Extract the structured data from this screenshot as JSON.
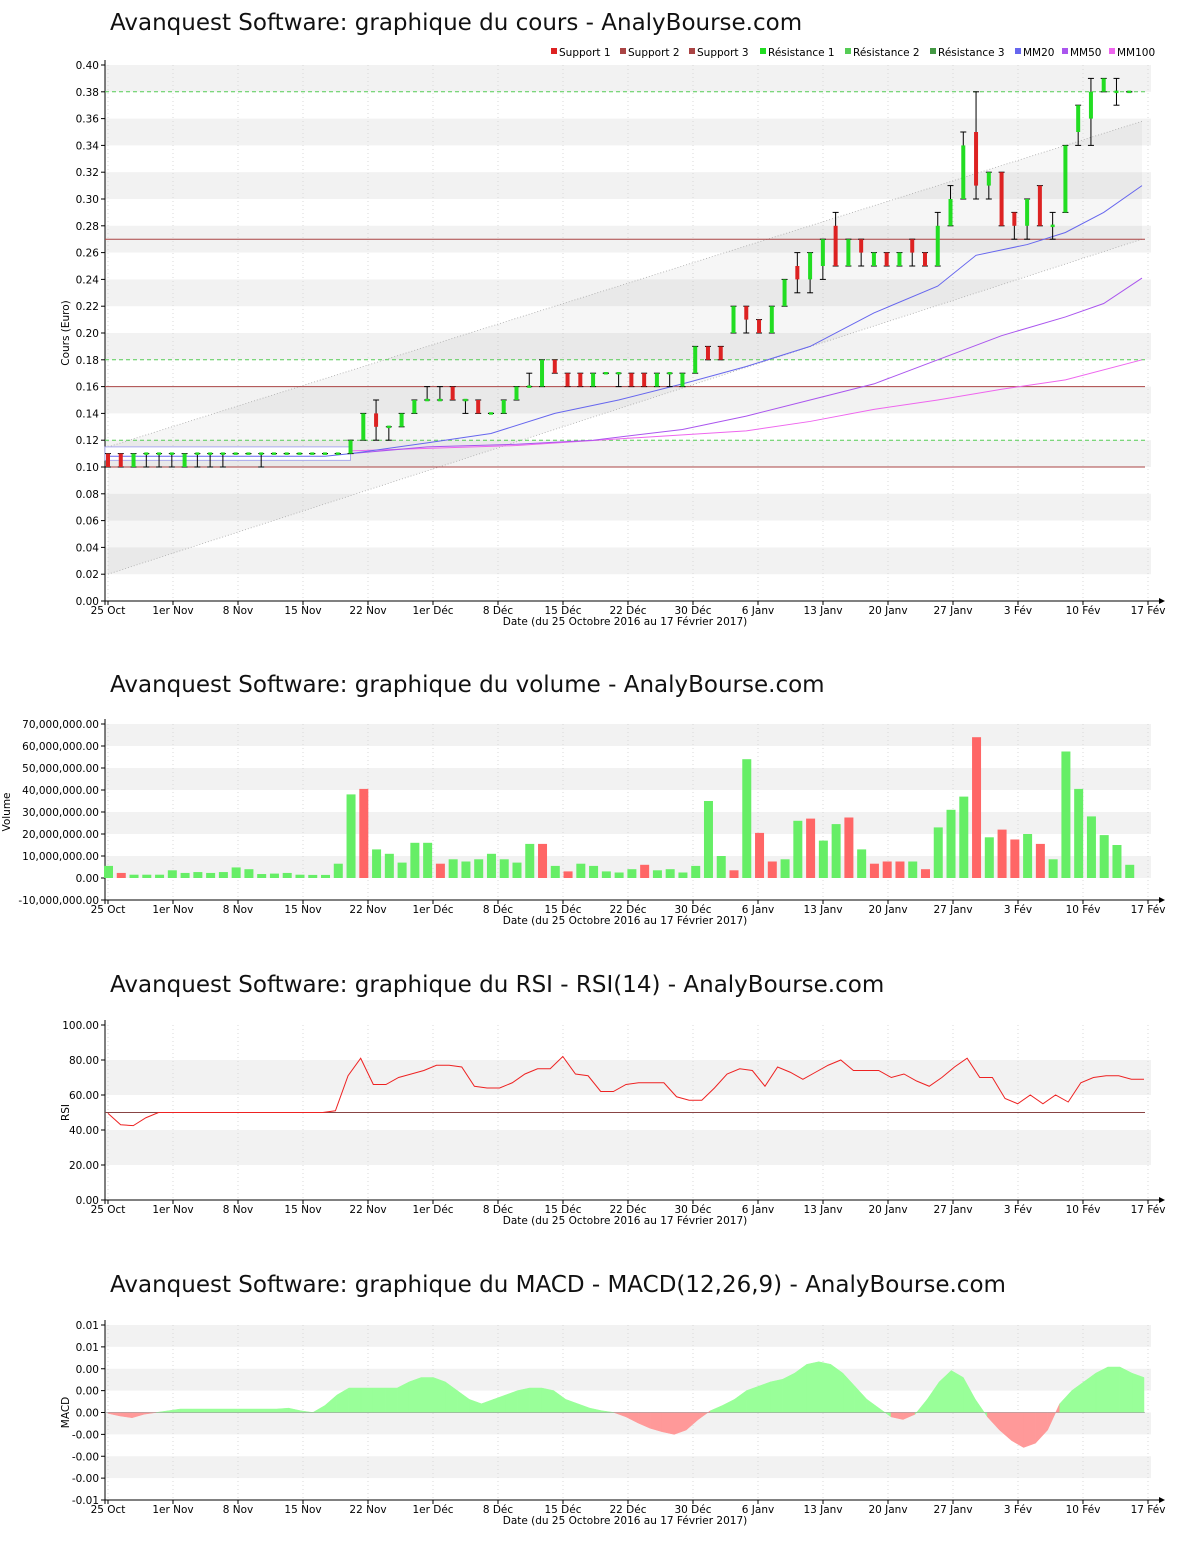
{
  "x_ticks": [
    "25 Oct",
    "1er Nov",
    "8 Nov",
    "15 Nov",
    "22 Nov",
    "1er Déc",
    "8 Déc",
    "15 Déc",
    "22 Déc",
    "30 Déc",
    "6 Janv",
    "13 Janv",
    "20 Janv",
    "27 Janv",
    "3 Fév",
    "10 Fév",
    "17 Fév"
  ],
  "x_axis_label": "Date (du 25 Octobre 2016 au 17 Février 2017)",
  "charts": {
    "price": {
      "title": "Avanquest Software: graphique du cours - AnalyBourse.com",
      "ylabel": "Cours (Euro)",
      "legend": [
        "Support 1",
        "Support 2",
        "Support 3",
        "Résistance 1",
        "Résistance 2",
        "Résistance 3",
        "MM20",
        "MM50",
        "MM100"
      ]
    },
    "volume": {
      "title": "Avanquest Software: graphique du volume - AnalyBourse.com",
      "ylabel": "Volume"
    },
    "rsi": {
      "title": "Avanquest Software: graphique du RSI - RSI(14) - AnalyBourse.com",
      "ylabel": "RSI"
    },
    "macd": {
      "title": "Avanquest Software: graphique du MACD - MACD(12,26,9) - AnalyBourse.com",
      "ylabel": "MACD"
    }
  },
  "chart_data": [
    {
      "type": "candlestick",
      "title": "Avanquest Software: graphique du cours - AnalyBourse.com",
      "xlabel": "Date (du 25 Octobre 2016 au 17 Février 2017)",
      "ylabel": "Cours (Euro)",
      "ylim": [
        0,
        0.4
      ],
      "yticks": [
        "0.00",
        "0.02",
        "0.04",
        "0.06",
        "0.08",
        "0.10",
        "0.12",
        "0.14",
        "0.16",
        "0.18",
        "0.20",
        "0.22",
        "0.24",
        "0.26",
        "0.28",
        "0.30",
        "0.32",
        "0.34",
        "0.36",
        "0.38",
        "0.40"
      ],
      "grid": true,
      "legend_position": "top-right",
      "colors": {
        "up": "#22dd22",
        "down": "#dd2222",
        "support": "#aa4444",
        "resistance": "#55cc55",
        "mm20": "#6666ee",
        "mm50": "#aa55ee",
        "mm100": "#ee66ee"
      },
      "ohlc": [
        [
          0.11,
          0.11,
          0.1,
          0.1
        ],
        [
          0.11,
          0.11,
          0.1,
          0.1
        ],
        [
          0.1,
          0.11,
          0.1,
          0.11
        ],
        [
          0.11,
          0.11,
          0.1,
          0.11
        ],
        [
          0.11,
          0.11,
          0.1,
          0.11
        ],
        [
          0.11,
          0.11,
          0.1,
          0.11
        ],
        [
          0.1,
          0.11,
          0.1,
          0.11
        ],
        [
          0.11,
          0.11,
          0.1,
          0.11
        ],
        [
          0.11,
          0.11,
          0.1,
          0.11
        ],
        [
          0.11,
          0.11,
          0.1,
          0.11
        ],
        [
          0.11,
          0.11,
          0.11,
          0.11
        ],
        [
          0.11,
          0.11,
          0.11,
          0.11
        ],
        [
          0.11,
          0.11,
          0.1,
          0.11
        ],
        [
          0.11,
          0.11,
          0.11,
          0.11
        ],
        [
          0.11,
          0.11,
          0.11,
          0.11
        ],
        [
          0.11,
          0.11,
          0.11,
          0.11
        ],
        [
          0.11,
          0.11,
          0.11,
          0.11
        ],
        [
          0.11,
          0.11,
          0.11,
          0.11
        ],
        [
          0.11,
          0.11,
          0.11,
          0.11
        ],
        [
          0.11,
          0.12,
          0.11,
          0.12
        ],
        [
          0.12,
          0.14,
          0.12,
          0.14
        ],
        [
          0.14,
          0.15,
          0.12,
          0.13
        ],
        [
          0.13,
          0.13,
          0.12,
          0.13
        ],
        [
          0.13,
          0.14,
          0.13,
          0.14
        ],
        [
          0.14,
          0.15,
          0.14,
          0.15
        ],
        [
          0.15,
          0.16,
          0.15,
          0.15
        ],
        [
          0.15,
          0.16,
          0.15,
          0.15
        ],
        [
          0.16,
          0.16,
          0.15,
          0.15
        ],
        [
          0.15,
          0.15,
          0.14,
          0.15
        ],
        [
          0.15,
          0.15,
          0.14,
          0.14
        ],
        [
          0.14,
          0.14,
          0.14,
          0.14
        ],
        [
          0.14,
          0.15,
          0.14,
          0.15
        ],
        [
          0.15,
          0.16,
          0.15,
          0.16
        ],
        [
          0.16,
          0.17,
          0.16,
          0.16
        ],
        [
          0.16,
          0.18,
          0.16,
          0.18
        ],
        [
          0.18,
          0.18,
          0.17,
          0.17
        ],
        [
          0.17,
          0.17,
          0.16,
          0.16
        ],
        [
          0.17,
          0.17,
          0.16,
          0.16
        ],
        [
          0.16,
          0.17,
          0.16,
          0.17
        ],
        [
          0.17,
          0.17,
          0.17,
          0.17
        ],
        [
          0.17,
          0.17,
          0.16,
          0.17
        ],
        [
          0.17,
          0.17,
          0.16,
          0.16
        ],
        [
          0.17,
          0.17,
          0.16,
          0.16
        ],
        [
          0.16,
          0.17,
          0.16,
          0.17
        ],
        [
          0.17,
          0.17,
          0.16,
          0.17
        ],
        [
          0.16,
          0.17,
          0.16,
          0.17
        ],
        [
          0.17,
          0.19,
          0.17,
          0.19
        ],
        [
          0.19,
          0.19,
          0.18,
          0.18
        ],
        [
          0.19,
          0.19,
          0.18,
          0.18
        ],
        [
          0.2,
          0.22,
          0.2,
          0.22
        ],
        [
          0.22,
          0.22,
          0.2,
          0.21
        ],
        [
          0.21,
          0.21,
          0.2,
          0.2
        ],
        [
          0.2,
          0.22,
          0.2,
          0.22
        ],
        [
          0.22,
          0.24,
          0.22,
          0.24
        ],
        [
          0.25,
          0.26,
          0.23,
          0.24
        ],
        [
          0.24,
          0.26,
          0.23,
          0.26
        ],
        [
          0.25,
          0.27,
          0.24,
          0.27
        ],
        [
          0.28,
          0.29,
          0.25,
          0.25
        ],
        [
          0.25,
          0.27,
          0.25,
          0.27
        ],
        [
          0.27,
          0.27,
          0.25,
          0.26
        ],
        [
          0.25,
          0.26,
          0.25,
          0.26
        ],
        [
          0.26,
          0.26,
          0.25,
          0.25
        ],
        [
          0.25,
          0.26,
          0.25,
          0.26
        ],
        [
          0.27,
          0.27,
          0.25,
          0.26
        ],
        [
          0.26,
          0.26,
          0.25,
          0.25
        ],
        [
          0.25,
          0.29,
          0.25,
          0.28
        ],
        [
          0.28,
          0.31,
          0.28,
          0.3
        ],
        [
          0.3,
          0.35,
          0.3,
          0.34
        ],
        [
          0.35,
          0.38,
          0.3,
          0.31
        ],
        [
          0.31,
          0.32,
          0.3,
          0.32
        ],
        [
          0.32,
          0.32,
          0.28,
          0.28
        ],
        [
          0.29,
          0.29,
          0.27,
          0.28
        ],
        [
          0.28,
          0.3,
          0.27,
          0.3
        ],
        [
          0.31,
          0.31,
          0.28,
          0.28
        ],
        [
          0.28,
          0.29,
          0.27,
          0.28
        ],
        [
          0.29,
          0.34,
          0.29,
          0.34
        ],
        [
          0.35,
          0.37,
          0.34,
          0.37
        ],
        [
          0.36,
          0.39,
          0.34,
          0.38
        ],
        [
          0.38,
          0.39,
          0.38,
          0.39
        ],
        [
          0.38,
          0.39,
          0.37,
          0.38
        ],
        [
          0.38,
          0.38,
          0.38,
          0.38
        ]
      ],
      "supports": [
        0.1,
        0.16,
        0.27
      ],
      "resistances": [
        0.12,
        0.18,
        0.38
      ],
      "mm20": [
        [
          0,
          0.108
        ],
        [
          17,
          0.108
        ],
        [
          19,
          0.11
        ],
        [
          25,
          0.118
        ],
        [
          30,
          0.125
        ],
        [
          35,
          0.14
        ],
        [
          40,
          0.15
        ],
        [
          45,
          0.162
        ],
        [
          50,
          0.175
        ],
        [
          55,
          0.19
        ],
        [
          60,
          0.215
        ],
        [
          65,
          0.235
        ],
        [
          68,
          0.258
        ],
        [
          72,
          0.266
        ],
        [
          75,
          0.275
        ],
        [
          78,
          0.29
        ],
        [
          81,
          0.31
        ]
      ],
      "mm50": [
        [
          19,
          0.11
        ],
        [
          25,
          0.115
        ],
        [
          32,
          0.117
        ],
        [
          38,
          0.12
        ],
        [
          45,
          0.128
        ],
        [
          50,
          0.138
        ],
        [
          55,
          0.15
        ],
        [
          60,
          0.162
        ],
        [
          65,
          0.18
        ],
        [
          70,
          0.198
        ],
        [
          75,
          0.212
        ],
        [
          78,
          0.222
        ],
        [
          81,
          0.241
        ]
      ],
      "mm100": [
        [
          19,
          0.112
        ],
        [
          32,
          0.116
        ],
        [
          40,
          0.121
        ],
        [
          50,
          0.127
        ],
        [
          55,
          0.134
        ],
        [
          60,
          0.143
        ],
        [
          65,
          0.15
        ],
        [
          70,
          0.158
        ],
        [
          75,
          0.165
        ],
        [
          81,
          0.18
        ]
      ],
      "trend_channel": {
        "upper": [
          [
            0,
            0.115
          ],
          [
            81,
            0.358
          ]
        ],
        "lower": [
          [
            0,
            0.02
          ],
          [
            81,
            0.27
          ]
        ]
      }
    },
    {
      "type": "bar",
      "title": "Avanquest Software: graphique du volume - AnalyBourse.com",
      "xlabel": "Date (du 25 Octobre 2016 au 17 Février 2017)",
      "ylabel": "Volume",
      "ylim": [
        -10000000,
        70000000
      ],
      "yticks": [
        "-10,000,000.00",
        "0.00",
        "10,000,000.00",
        "20,000,000.00",
        "30,000,000.00",
        "40,000,000.00",
        "50,000,000.00",
        "60,000,000.00",
        "70,000,000.00"
      ],
      "values": [
        5500000,
        2300000,
        1500000,
        1500000,
        1500000,
        3500000,
        2300000,
        2700000,
        2300000,
        2700000,
        4800000,
        4000000,
        1800000,
        2000000,
        2300000,
        1500000,
        1400000,
        1400000,
        6500000,
        38000000,
        40500000,
        13000000,
        11000000,
        7000000,
        16000000,
        16000000,
        6500000,
        8500000,
        7500000,
        8500000,
        11000000,
        8500000,
        7000000,
        15500000,
        15500000,
        5500000,
        3000000,
        6500000,
        5500000,
        3000000,
        2500000,
        4000000,
        6000000,
        3500000,
        4000000,
        2500000,
        5500000,
        35000000,
        10000000,
        3500000,
        54000000,
        20500000,
        7500000,
        8500000,
        26000000,
        27000000,
        17000000,
        24500000,
        27500000,
        13000000,
        6500000,
        7500000,
        7500000,
        7500000,
        4000000,
        23000000,
        31000000,
        37000000,
        64000000,
        18500000,
        22000000,
        17500000,
        20000000,
        15500000,
        8500000,
        57500000,
        40500000,
        28000000,
        19500000,
        15000000,
        6000000
      ],
      "colors": [
        "up",
        "down",
        "up",
        "up",
        "up",
        "up",
        "up",
        "up",
        "up",
        "up",
        "up",
        "up",
        "up",
        "up",
        "up",
        "up",
        "up",
        "up",
        "up",
        "up",
        "down",
        "up",
        "up",
        "up",
        "up",
        "up",
        "down",
        "up",
        "up",
        "up",
        "up",
        "up",
        "up",
        "up",
        "down",
        "up",
        "down",
        "up",
        "up",
        "up",
        "up",
        "up",
        "down",
        "up",
        "up",
        "up",
        "up",
        "up",
        "up",
        "down",
        "up",
        "down",
        "down",
        "up",
        "up",
        "down",
        "up",
        "up",
        "down",
        "up",
        "down",
        "down",
        "down",
        "up",
        "down",
        "up",
        "up",
        "up",
        "down",
        "up",
        "down",
        "down",
        "up",
        "down",
        "up",
        "up",
        "up",
        "up",
        "up",
        "up",
        "up"
      ]
    },
    {
      "type": "line",
      "title": "Avanquest Software: graphique du RSI - RSI(14) - AnalyBourse.com",
      "xlabel": "Date (du 25 Octobre 2016 au 17 Février 2017)",
      "ylabel": "RSI",
      "ylim": [
        0,
        100
      ],
      "yticks": [
        "0.00",
        "20.00",
        "40.00",
        "60.00",
        "80.00",
        "100.00"
      ],
      "reference_line": 50,
      "series": [
        {
          "values": [
            49.5,
            43,
            42.5,
            47,
            50,
            50,
            50,
            50,
            50,
            50,
            50,
            50,
            50,
            50,
            50,
            50,
            50,
            50,
            51,
            71,
            81,
            66,
            66,
            70,
            72,
            74,
            77,
            77,
            76,
            65,
            64,
            64,
            67,
            72,
            75,
            75,
            82,
            72,
            71,
            62,
            62,
            66,
            67,
            67,
            67,
            59,
            57,
            57,
            64,
            72,
            75,
            74,
            65,
            76,
            73,
            69,
            73,
            77,
            80,
            74,
            74,
            74,
            70,
            72,
            68,
            65,
            70,
            76,
            81,
            70,
            70,
            58,
            55,
            60,
            55,
            60,
            56,
            67,
            70,
            71,
            71,
            69,
            69
          ]
        }
      ]
    },
    {
      "type": "area",
      "title": "Avanquest Software: graphique du MACD - MACD(12,26,9) - AnalyBourse.com",
      "xlabel": "Date (du 25 Octobre 2016 au 17 Février 2017)",
      "ylabel": "MACD",
      "ylim": [
        -0.01,
        0.01
      ],
      "yticks": [
        "-0.01",
        "-0.00",
        "-0.00",
        "-0.00",
        "0.00",
        "0.00",
        "0.00",
        "0.01",
        "0.01"
      ],
      "series": [
        {
          "values": [
            -0.0001,
            -0.0004,
            -0.0006,
            -0.0002,
            0,
            0.0002,
            0.0004,
            0.0004,
            0.0004,
            0.0004,
            0.0004,
            0.0004,
            0.0004,
            0.0004,
            0.0004,
            0.0005,
            0.0002,
            0,
            0.0008,
            0.002,
            0.0028,
            0.0028,
            0.0028,
            0.0028,
            0.0028,
            0.0035,
            0.004,
            0.004,
            0.0035,
            0.0025,
            0.0015,
            0.001,
            0.0015,
            0.002,
            0.0025,
            0.0028,
            0.0028,
            0.0025,
            0.0015,
            0.001,
            0.0005,
            0.0002,
            0,
            -0.0005,
            -0.0012,
            -0.0018,
            -0.0022,
            -0.0025,
            -0.002,
            -0.0008,
            0.0002,
            0.0008,
            0.0015,
            0.0025,
            0.003,
            0.0035,
            0.0038,
            0.0045,
            0.0055,
            0.0058,
            0.0055,
            0.0045,
            0.003,
            0.0015,
            0.0005,
            -0.0005,
            -0.0008,
            -0.0002,
            0.0015,
            0.0035,
            0.0048,
            0.004,
            0.0015,
            -0.0005,
            -0.002,
            -0.0032,
            -0.004,
            -0.0035,
            -0.002,
            0.001,
            0.0025,
            0.0035,
            0.0045,
            0.0052,
            0.0052,
            0.0045,
            0.004
          ]
        }
      ],
      "colors": {
        "positive": "#99ff99",
        "negative": "#ff9999"
      }
    }
  ]
}
